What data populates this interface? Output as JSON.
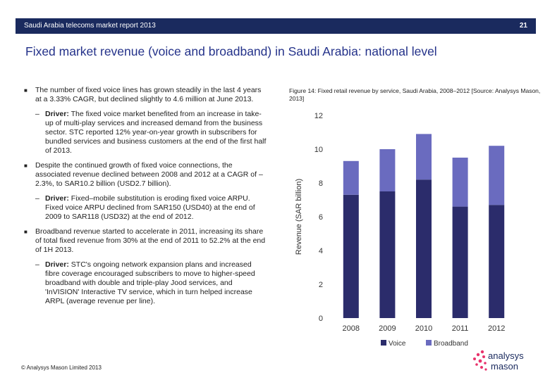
{
  "header": {
    "report_title": "Saudi Arabia telecoms market report 2013",
    "page_number": "21"
  },
  "title": "Fixed market revenue (voice and broadband) in Saudi Arabia: national level",
  "bullets": [
    {
      "text": "The number of fixed voice lines has grown steadily in the last 4 years at a 3.33% CAGR, but declined slightly to 4.6 million at June 2013.",
      "sub_label": "Driver:",
      "sub_text": " The fixed voice market benefited from an increase in take-up of multi-play services and increased demand from the business sector. STC reported 12% year-on-year growth in subscribers for bundled services and business customers at the end of the first half of 2013."
    },
    {
      "text": "Despite the continued growth of fixed voice connections, the associated revenue declined between 2008 and 2012 at a CAGR of –2.3%, to SAR10.2 billion (USD2.7 billion).",
      "sub_label": "Driver:",
      "sub_text": " Fixed–mobile substitution is eroding fixed voice ARPU. Fixed voice ARPU declined from SAR150 (USD40) at the end of 2009 to SAR118 (USD32) at the end of 2012."
    },
    {
      "text": "Broadband revenue started to accelerate in 2011, increasing its share of total fixed revenue from 30% at the end of 2011 to 52.2% at the end of 1H 2013.",
      "sub_label": "Driver:",
      "sub_text": " STC's ongoing network expansion plans and increased fibre coverage encouraged subscribers to move to higher-speed broadband with double and triple-play Jood services, and 'InVISION' Interactive TV service, which in turn helped increase ARPL (average revenue per line)."
    }
  ],
  "figure_caption": "Figure 14: Fixed retail revenue by service, Saudi Arabia, 2008–2012 [Source: Analysys Mason, 2013]",
  "chart_data": {
    "type": "bar",
    "stacked": true,
    "categories": [
      "2008",
      "2009",
      "2010",
      "2011",
      "2012"
    ],
    "series": [
      {
        "name": "Voice",
        "color": "#2b2c6b",
        "values": [
          7.3,
          7.5,
          8.2,
          6.6,
          6.7
        ]
      },
      {
        "name": "Broadband",
        "color": "#6a6bbf",
        "values": [
          2.0,
          2.5,
          2.7,
          2.9,
          3.5
        ]
      }
    ],
    "ylabel": "Revenue (SAR billion)",
    "ylim": [
      0,
      12
    ],
    "yticks": [
      0,
      2,
      4,
      6,
      8,
      10,
      12
    ],
    "legend_position": "bottom"
  },
  "footer": "© Analysys Mason Limited 2013",
  "logo": {
    "line1": "analysys",
    "line2": "mason"
  }
}
